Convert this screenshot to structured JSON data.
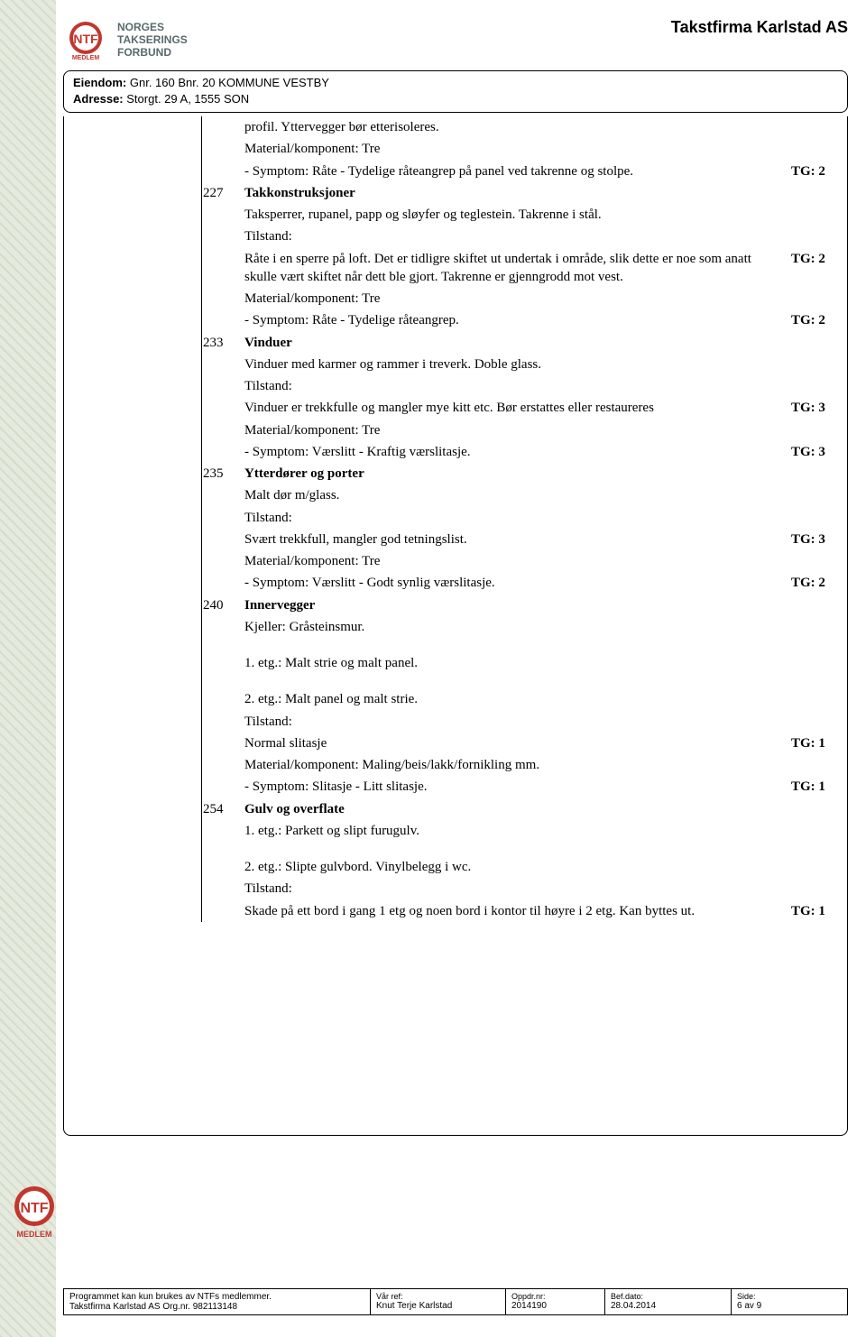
{
  "header": {
    "logo_lines": [
      "NORGES",
      "TAKSERINGS",
      "FORBUND"
    ],
    "company": "Takstfirma Karlstad AS"
  },
  "property": {
    "eiendom_label": "Eiendom:",
    "eiendom_value": "Gnr. 160  Bnr. 20   KOMMUNE VESTBY",
    "adresse_label": "Adresse:",
    "adresse_value": "Storgt. 29 A, 1555 SON"
  },
  "sections": [
    {
      "num": "",
      "heading": "",
      "lines": [
        {
          "txt": "profil. Yttervegger bør etterisoleres.",
          "tg": ""
        },
        {
          "txt": "Material/komponent: Tre",
          "tg": ""
        },
        {
          "txt": "- Symptom: Råte - Tydelige råteangrep på panel ved takrenne og stolpe.",
          "tg": "TG: 2"
        }
      ]
    },
    {
      "num": "227",
      "heading": "Takkonstruksjoner",
      "lines": [
        {
          "txt": "Taksperrer, rupanel, papp og sløyfer og teglestein. Takrenne i stål.",
          "tg": ""
        },
        {
          "txt": "Tilstand:",
          "tg": ""
        },
        {
          "txt": "Råte i en sperre på loft. Det er tidligre skiftet ut undertak i område, slik dette er noe som anatt skulle vært skiftet når dett ble gjort. Takrenne er gjenngrodd mot vest.",
          "tg": "TG: 2"
        },
        {
          "txt": "Material/komponent: Tre",
          "tg": ""
        },
        {
          "txt": "- Symptom: Råte - Tydelige råteangrep.",
          "tg": "TG: 2"
        }
      ]
    },
    {
      "num": "233",
      "heading": "Vinduer",
      "lines": [
        {
          "txt": "Vinduer med karmer og rammer i treverk. Doble glass.",
          "tg": ""
        },
        {
          "txt": "Tilstand:",
          "tg": ""
        },
        {
          "txt": "Vinduer er trekkfulle og mangler mye kitt etc. Bør erstattes eller restaureres",
          "tg": "TG: 3"
        },
        {
          "txt": "Material/komponent: Tre",
          "tg": ""
        },
        {
          "txt": "- Symptom: Værslitt - Kraftig værslitasje.",
          "tg": "TG: 3"
        }
      ]
    },
    {
      "num": "235",
      "heading": "Ytterdører og porter",
      "lines": [
        {
          "txt": "Malt dør m/glass.",
          "tg": ""
        },
        {
          "txt": "Tilstand:",
          "tg": ""
        },
        {
          "txt": "Svært trekkfull, mangler god tetningslist.",
          "tg": "TG: 3"
        },
        {
          "txt": "Material/komponent: Tre",
          "tg": ""
        },
        {
          "txt": "- Symptom: Værslitt - Godt synlig værslitasje.",
          "tg": "TG: 2"
        }
      ]
    },
    {
      "num": "240",
      "heading": "Innervegger",
      "lines": [
        {
          "txt": "Kjeller: Gråsteinsmur.",
          "tg": ""
        },
        {
          "txt": "",
          "tg": ""
        },
        {
          "txt": "1. etg.: Malt strie og malt panel.",
          "tg": ""
        },
        {
          "txt": "",
          "tg": ""
        },
        {
          "txt": "2. etg.: Malt panel og malt strie.",
          "tg": ""
        },
        {
          "txt": "Tilstand:",
          "tg": ""
        },
        {
          "txt": "Normal slitasje",
          "tg": "TG: 1"
        },
        {
          "txt": "Material/komponent: Maling/beis/lakk/fornikling mm.",
          "tg": ""
        },
        {
          "txt": "- Symptom: Slitasje - Litt slitasje.",
          "tg": "TG: 1"
        }
      ]
    },
    {
      "num": "254",
      "heading": "Gulv og overflate",
      "lines": [
        {
          "txt": "1. etg.: Parkett og slipt furugulv.",
          "tg": ""
        },
        {
          "txt": "",
          "tg": ""
        },
        {
          "txt": "2. etg.: Slipte gulvbord. Vinylbelegg i wc.",
          "tg": ""
        },
        {
          "txt": "Tilstand:",
          "tg": ""
        },
        {
          "txt": "Skade på ett bord i gang 1 etg og noen bord i kontor til høyre i 2 etg. Kan byttes ut.",
          "tg": "TG: 1"
        }
      ]
    }
  ],
  "footer": {
    "note_line1": "Programmet kan kun brukes av NTFs medlemmer.",
    "note_line2_label": "Takstfirma Karlstad AS  Org.nr. 982113148",
    "cols": [
      {
        "lbl": "Vår ref:",
        "val": "Knut Terje Karlstad"
      },
      {
        "lbl": "Oppdr.nr:",
        "val": "2014190"
      },
      {
        "lbl": "Bef.dato:",
        "val": "28.04.2014"
      },
      {
        "lbl": "Side:",
        "val": "6 av 9"
      }
    ]
  },
  "logo_colors": {
    "ring": "#c3362d",
    "inner": "#ffffff",
    "text": "#c3362d"
  }
}
